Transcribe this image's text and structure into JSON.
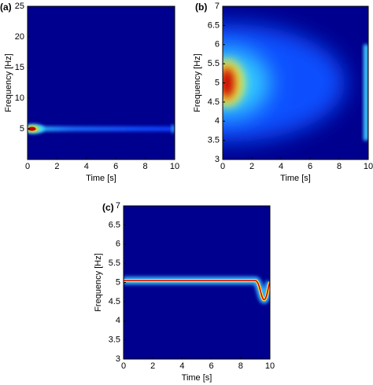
{
  "chart_data": [
    {
      "type": "heatmap",
      "panel_label": "(a)",
      "xlabel": "Time [s]",
      "ylabel": "Frequency [Hz]",
      "xlim": [
        0,
        10
      ],
      "xticks": [
        0,
        2,
        4,
        6,
        8,
        10
      ],
      "ylim": [
        0,
        25
      ],
      "yticks": [
        5,
        10,
        15,
        20,
        25
      ]
    },
    {
      "type": "heatmap",
      "panel_label": "(b)",
      "xlabel": "Time [s]",
      "ylabel": "Frequency [Hz]",
      "xlim": [
        0,
        10
      ],
      "xticks": [
        0,
        2,
        4,
        6,
        8,
        10
      ],
      "ylim": [
        3,
        7
      ],
      "yticks": [
        3,
        3.5,
        4,
        4.5,
        5,
        5.5,
        6,
        6.5,
        7
      ]
    },
    {
      "type": "heatmap",
      "panel_label": "(c)",
      "xlabel": "Time [s]",
      "ylabel": "Frequency [Hz]",
      "xlim": [
        0,
        10
      ],
      "xticks": [
        0,
        2,
        4,
        6,
        8,
        10
      ],
      "ylim": [
        3,
        7
      ],
      "yticks": [
        3,
        3.5,
        4,
        4.5,
        5,
        5.5,
        6,
        6.5,
        7
      ]
    }
  ]
}
